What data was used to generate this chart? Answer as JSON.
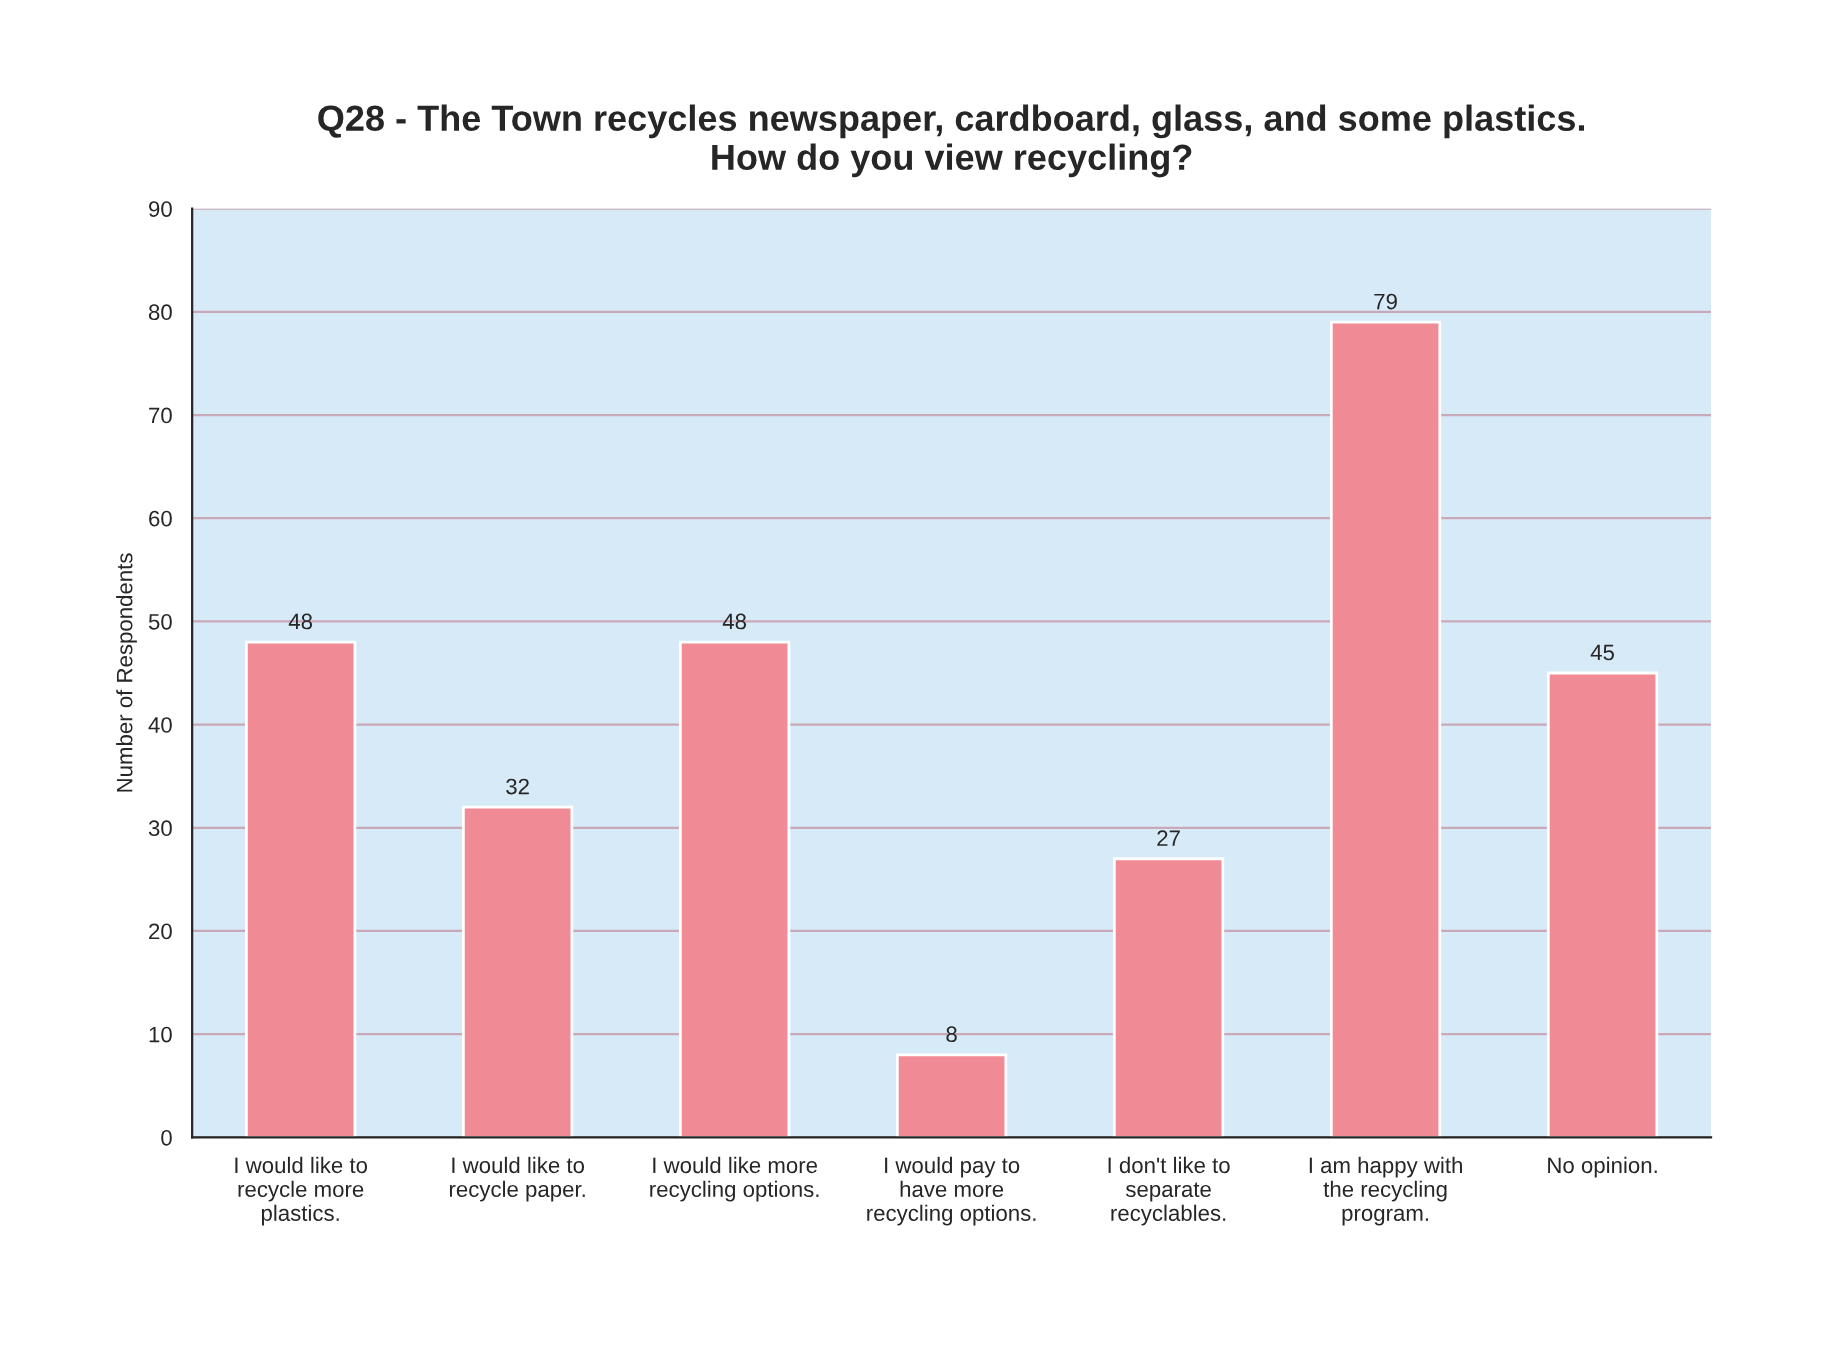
{
  "chart_data": {
    "type": "bar",
    "title": "Q28 - The Town recycles newspaper, cardboard, glass, and some plastics.\nHow do you view recycling?",
    "ylabel": "Number of Respondents",
    "categories": [
      "I would like to\nrecycle more\nplastics.",
      "I would like to\nrecycle paper.",
      "I would like more\nrecycling options.",
      "I would pay to\nhave more\nrecycling options.",
      "I don't like to\nseparate\nrecyclables.",
      "I am happy with\nthe recycling\nprogram.",
      "No opinion."
    ],
    "values": [
      48,
      32,
      48,
      8,
      27,
      79,
      45
    ],
    "color": "#f08a94",
    "ylim": [
      0,
      90
    ],
    "yticks": [
      0,
      10,
      20,
      30,
      40,
      50,
      60,
      70,
      80,
      90
    ],
    "grid": "y",
    "data_labels": true,
    "legend": false
  }
}
